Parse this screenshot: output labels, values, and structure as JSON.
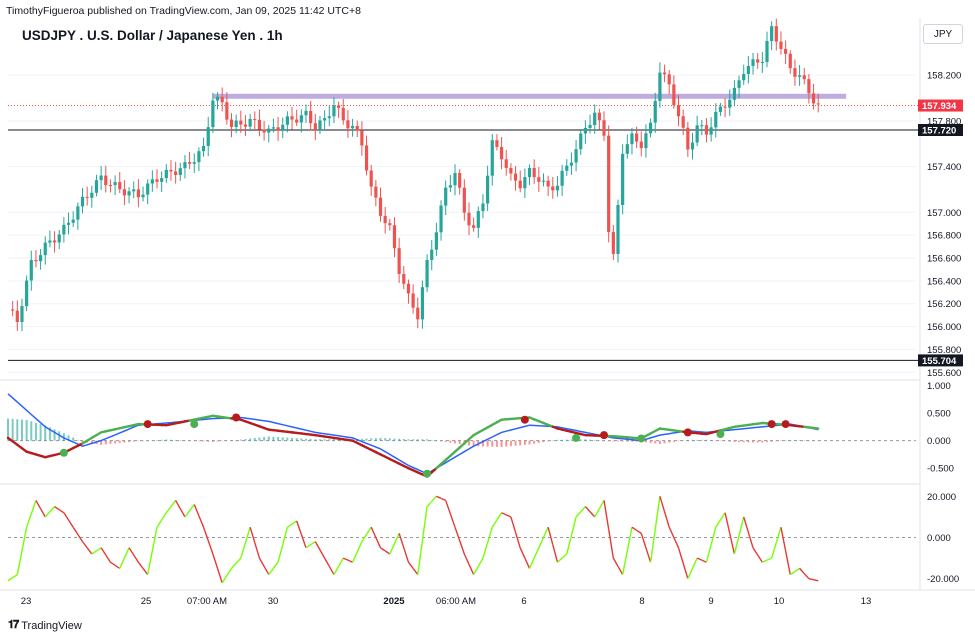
{
  "header": {
    "publisher_line": "TimothyFigueroa published on TradingView.com, Jan 09, 2025 11:42 UTC+8",
    "symbol_title": "USDJPY . U.S. Dollar / Japanese Yen . 1h",
    "currency": "JPY"
  },
  "footer": {
    "brand": "TradingView",
    "logo_icon": "tradingview-logo-icon"
  },
  "colors": {
    "up": "#26a69a",
    "down": "#ef5350",
    "resistance_band": "#b39ddb",
    "current_price_badge": "#f23645",
    "level_badge": "#131722",
    "macd_line": "#2962ff",
    "wave_up": "#4caf50",
    "wave_down": "#b71c1c",
    "osc_up": "#76ff03",
    "osc_down": "#e53935"
  },
  "chart_data": [
    {
      "type": "candlestick",
      "title": "USDJPY . U.S. Dollar / Japanese Yen . 1h",
      "ylim": [
        155.55,
        158.7
      ],
      "y_ticks": [
        "158.200",
        "157.800",
        "157.400",
        "157.000",
        "156.800",
        "156.600",
        "156.400",
        "156.200",
        "156.000",
        "155.800",
        "155.600"
      ],
      "x_ticks": [
        "23",
        "25",
        "07:00 AM",
        "30",
        "2025",
        "06:00 AM",
        "6",
        "8",
        "9",
        "10",
        "13"
      ],
      "x_tick_bold": [
        "2025"
      ],
      "price_path": [
        [
          0,
          156.15
        ],
        [
          2,
          156.05
        ],
        [
          5,
          156.55
        ],
        [
          8,
          156.7
        ],
        [
          12,
          156.85
        ],
        [
          16,
          157.1
        ],
        [
          20,
          157.3
        ],
        [
          24,
          157.2
        ],
        [
          28,
          157.15
        ],
        [
          32,
          157.3
        ],
        [
          38,
          157.4
        ],
        [
          42,
          157.55
        ],
        [
          44,
          158.0
        ],
        [
          46,
          157.95
        ],
        [
          48,
          157.75
        ],
        [
          52,
          157.8
        ],
        [
          56,
          157.7
        ],
        [
          60,
          157.8
        ],
        [
          64,
          157.85
        ],
        [
          66,
          157.75
        ],
        [
          68,
          157.8
        ],
        [
          70,
          157.95
        ],
        [
          72,
          157.8
        ],
        [
          74,
          157.75
        ],
        [
          76,
          157.6
        ],
        [
          78,
          157.2
        ],
        [
          80,
          157.0
        ],
        [
          82,
          156.85
        ],
        [
          84,
          156.5
        ],
        [
          86,
          156.25
        ],
        [
          88,
          156.1
        ],
        [
          90,
          156.55
        ],
        [
          92,
          156.85
        ],
        [
          94,
          157.2
        ],
        [
          96,
          157.35
        ],
        [
          98,
          157.0
        ],
        [
          100,
          156.85
        ],
        [
          102,
          157.1
        ],
        [
          104,
          157.6
        ],
        [
          106,
          157.5
        ],
        [
          108,
          157.3
        ],
        [
          110,
          157.25
        ],
        [
          112,
          157.35
        ],
        [
          114,
          157.3
        ],
        [
          116,
          157.2
        ],
        [
          118,
          157.25
        ],
        [
          120,
          157.4
        ],
        [
          122,
          157.55
        ],
        [
          124,
          157.75
        ],
        [
          126,
          157.85
        ],
        [
          128,
          157.7
        ],
        [
          129,
          156.85
        ],
        [
          130,
          156.6
        ],
        [
          131,
          157.05
        ],
        [
          132,
          157.55
        ],
        [
          134,
          157.65
        ],
        [
          136,
          157.6
        ],
        [
          138,
          157.75
        ],
        [
          140,
          158.25
        ],
        [
          142,
          158.1
        ],
        [
          144,
          157.85
        ],
        [
          146,
          157.55
        ],
        [
          148,
          157.75
        ],
        [
          150,
          157.7
        ],
        [
          152,
          157.85
        ],
        [
          154,
          157.95
        ],
        [
          156,
          158.05
        ],
        [
          158,
          158.25
        ],
        [
          160,
          158.3
        ],
        [
          162,
          158.35
        ],
        [
          164,
          158.6
        ],
        [
          166,
          158.45
        ],
        [
          168,
          158.25
        ],
        [
          170,
          158.2
        ],
        [
          172,
          158.05
        ],
        [
          174,
          157.93
        ]
      ],
      "current_price": "157.934",
      "levels": [
        {
          "price": "157.720",
          "value": 157.72
        },
        {
          "price": "155.704",
          "value": 155.704
        }
      ],
      "resistance_band": {
        "price": 158.015,
        "from_bar": 44,
        "to_bar": 180
      }
    },
    {
      "type": "line",
      "name": "oscillator-1",
      "ylim": [
        -0.75,
        1.1
      ],
      "y_ticks": [
        "1.000",
        "0.500",
        "0.000",
        "-0.500"
      ],
      "macd_path": [
        [
          0,
          0.85
        ],
        [
          4,
          0.55
        ],
        [
          8,
          0.25
        ],
        [
          12,
          0.05
        ],
        [
          16,
          -0.1
        ],
        [
          20,
          0.0
        ],
        [
          28,
          0.28
        ],
        [
          34,
          0.32
        ],
        [
          44,
          0.4
        ],
        [
          50,
          0.42
        ],
        [
          56,
          0.35
        ],
        [
          66,
          0.15
        ],
        [
          74,
          0.05
        ],
        [
          80,
          -0.15
        ],
        [
          86,
          -0.45
        ],
        [
          90,
          -0.6
        ],
        [
          94,
          -0.4
        ],
        [
          100,
          -0.1
        ],
        [
          106,
          0.15
        ],
        [
          112,
          0.28
        ],
        [
          118,
          0.25
        ],
        [
          124,
          0.15
        ],
        [
          130,
          0.05
        ],
        [
          136,
          0.0
        ],
        [
          140,
          0.1
        ],
        [
          146,
          0.18
        ],
        [
          150,
          0.15
        ],
        [
          156,
          0.2
        ],
        [
          162,
          0.25
        ],
        [
          168,
          0.3
        ],
        [
          174,
          0.2
        ]
      ],
      "signal_path": [
        [
          0,
          0.05
        ],
        [
          4,
          -0.2
        ],
        [
          8,
          -0.3
        ],
        [
          12,
          -0.22
        ],
        [
          16,
          -0.05
        ],
        [
          20,
          0.15
        ],
        [
          28,
          0.3
        ],
        [
          34,
          0.28
        ],
        [
          44,
          0.45
        ],
        [
          50,
          0.38
        ],
        [
          56,
          0.2
        ],
        [
          66,
          0.1
        ],
        [
          74,
          0.0
        ],
        [
          80,
          -0.25
        ],
        [
          86,
          -0.5
        ],
        [
          90,
          -0.65
        ],
        [
          94,
          -0.35
        ],
        [
          100,
          0.1
        ],
        [
          106,
          0.38
        ],
        [
          112,
          0.42
        ],
        [
          118,
          0.22
        ],
        [
          124,
          0.1
        ],
        [
          130,
          0.08
        ],
        [
          136,
          0.04
        ],
        [
          140,
          0.22
        ],
        [
          146,
          0.15
        ],
        [
          150,
          0.12
        ],
        [
          156,
          0.25
        ],
        [
          162,
          0.32
        ],
        [
          168,
          0.28
        ],
        [
          174,
          0.22
        ]
      ],
      "cross_markers": [
        {
          "bar": 12,
          "value": -0.22,
          "dir": "up"
        },
        {
          "bar": 30,
          "value": 0.3,
          "dir": "down"
        },
        {
          "bar": 40,
          "value": 0.3,
          "dir": "up"
        },
        {
          "bar": 49,
          "value": 0.42,
          "dir": "down"
        },
        {
          "bar": 90,
          "value": -0.6,
          "dir": "up"
        },
        {
          "bar": 111,
          "value": 0.38,
          "dir": "down"
        },
        {
          "bar": 122,
          "value": 0.05,
          "dir": "up"
        },
        {
          "bar": 128,
          "value": 0.1,
          "dir": "down"
        },
        {
          "bar": 136,
          "value": 0.04,
          "dir": "up"
        },
        {
          "bar": 146,
          "value": 0.15,
          "dir": "down"
        },
        {
          "bar": 153,
          "value": 0.12,
          "dir": "up"
        },
        {
          "bar": 164,
          "value": 0.3,
          "dir": "down"
        },
        {
          "bar": 167,
          "value": 0.3,
          "dir": "down"
        }
      ]
    },
    {
      "type": "line",
      "name": "oscillator-2",
      "ylim": [
        -25,
        25
      ],
      "y_ticks": [
        "20.000",
        "0.000",
        "-20.000"
      ],
      "path": [
        [
          0,
          -21
        ],
        [
          2,
          -18
        ],
        [
          4,
          5
        ],
        [
          6,
          18
        ],
        [
          8,
          10
        ],
        [
          10,
          15
        ],
        [
          12,
          12
        ],
        [
          14,
          5
        ],
        [
          16,
          -2
        ],
        [
          18,
          -8
        ],
        [
          20,
          -5
        ],
        [
          22,
          -12
        ],
        [
          24,
          -15
        ],
        [
          26,
          -5
        ],
        [
          28,
          -12
        ],
        [
          30,
          -18
        ],
        [
          32,
          5
        ],
        [
          34,
          12
        ],
        [
          36,
          18
        ],
        [
          38,
          10
        ],
        [
          40,
          16
        ],
        [
          42,
          5
        ],
        [
          44,
          -8
        ],
        [
          46,
          -22
        ],
        [
          48,
          -15
        ],
        [
          50,
          -10
        ],
        [
          52,
          5
        ],
        [
          54,
          -10
        ],
        [
          56,
          -18
        ],
        [
          58,
          -12
        ],
        [
          60,
          5
        ],
        [
          62,
          8
        ],
        [
          64,
          -5
        ],
        [
          66,
          -2
        ],
        [
          68,
          -10
        ],
        [
          70,
          -18
        ],
        [
          72,
          -10
        ],
        [
          74,
          -12
        ],
        [
          76,
          -2
        ],
        [
          78,
          5
        ],
        [
          80,
          -5
        ],
        [
          82,
          -8
        ],
        [
          84,
          2
        ],
        [
          86,
          -12
        ],
        [
          88,
          -18
        ],
        [
          90,
          15
        ],
        [
          92,
          20
        ],
        [
          94,
          18
        ],
        [
          96,
          5
        ],
        [
          98,
          -8
        ],
        [
          100,
          -18
        ],
        [
          102,
          -10
        ],
        [
          104,
          5
        ],
        [
          106,
          12
        ],
        [
          108,
          10
        ],
        [
          110,
          -5
        ],
        [
          112,
          -15
        ],
        [
          114,
          -5
        ],
        [
          116,
          5
        ],
        [
          118,
          -12
        ],
        [
          120,
          -8
        ],
        [
          122,
          10
        ],
        [
          124,
          15
        ],
        [
          126,
          10
        ],
        [
          128,
          18
        ],
        [
          130,
          -10
        ],
        [
          132,
          -18
        ],
        [
          134,
          5
        ],
        [
          136,
          2
        ],
        [
          138,
          -12
        ],
        [
          140,
          20
        ],
        [
          142,
          5
        ],
        [
          144,
          -5
        ],
        [
          146,
          -20
        ],
        [
          148,
          -10
        ],
        [
          150,
          -12
        ],
        [
          152,
          5
        ],
        [
          154,
          12
        ],
        [
          156,
          -8
        ],
        [
          158,
          10
        ],
        [
          160,
          -5
        ],
        [
          162,
          -12
        ],
        [
          164,
          -10
        ],
        [
          166,
          5
        ],
        [
          168,
          -18
        ],
        [
          170,
          -15
        ],
        [
          172,
          -20
        ],
        [
          174,
          -21
        ]
      ]
    }
  ]
}
